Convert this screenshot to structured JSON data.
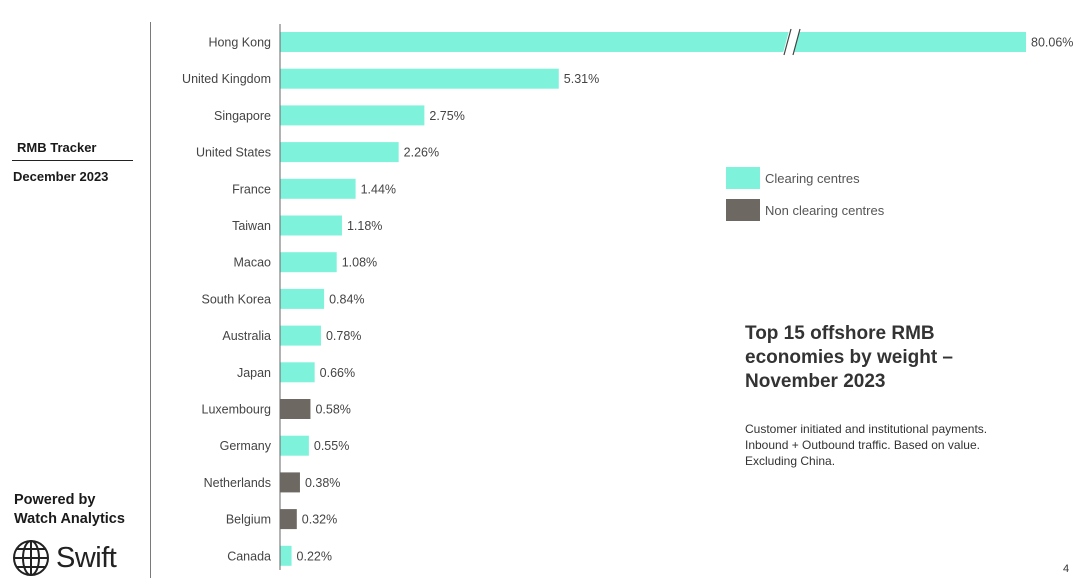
{
  "sidebar": {
    "tracker_title": "RMB Tracker",
    "date": "December 2023",
    "powered_line1": "Powered by",
    "powered_line2": "Watch Analytics",
    "logo_text": "Swift",
    "logo_icon": "globe-icon"
  },
  "legend": [
    {
      "label": "Clearing centres",
      "color": "#7ff2dc"
    },
    {
      "label": "Non clearing centres",
      "color": "#6e6863"
    }
  ],
  "side_title": "Top 15 offshore RMB economies by weight – November 2023",
  "side_note": "Customer initiated and institutional payments. Inbound + Outbound traffic. Based on value. Excluding China.",
  "page_number": "4",
  "chart_data": {
    "type": "bar",
    "orientation": "horizontal",
    "axis_break": true,
    "categories": [
      "Hong Kong",
      "United Kingdom",
      "Singapore",
      "United States",
      "France",
      "Taiwan",
      "Macao",
      "South Korea",
      "Australia",
      "Japan",
      "Luxembourg",
      "Germany",
      "Netherlands",
      "Belgium",
      "Canada"
    ],
    "values": [
      80.06,
      5.31,
      2.75,
      2.26,
      1.44,
      1.18,
      1.08,
      0.84,
      0.78,
      0.66,
      0.58,
      0.55,
      0.38,
      0.32,
      0.22
    ],
    "labels": [
      "80.06%",
      "5.31%",
      "2.75%",
      "2.26%",
      "1.44%",
      "1.18%",
      "1.08%",
      "0.84%",
      "0.78%",
      "0.66%",
      "0.58%",
      "0.55%",
      "0.38%",
      "0.32%",
      "0.22%"
    ],
    "clearing_centre": [
      true,
      true,
      true,
      true,
      true,
      true,
      true,
      true,
      true,
      true,
      false,
      true,
      false,
      false,
      true
    ]
  }
}
